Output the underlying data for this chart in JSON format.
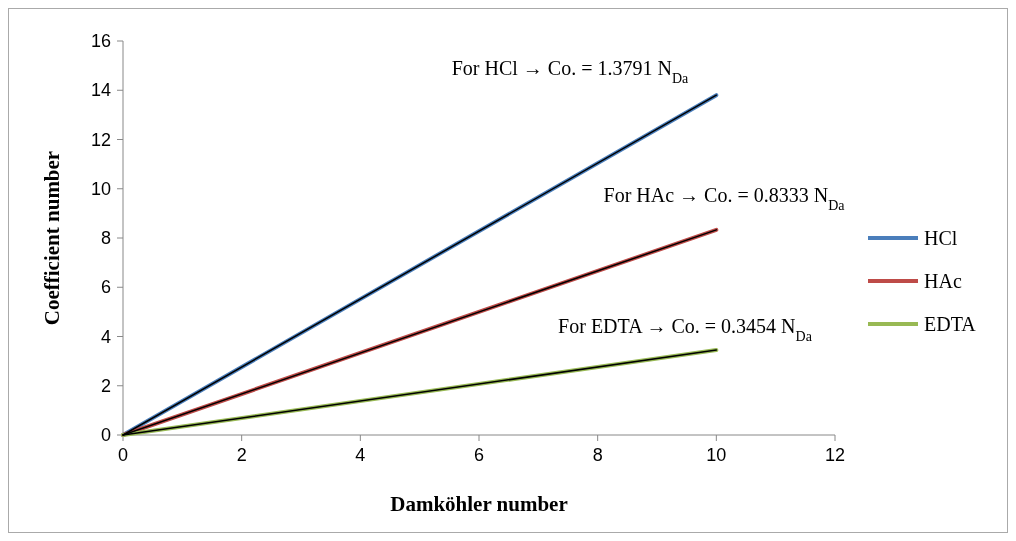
{
  "chart_data": {
    "type": "line",
    "xlabel": "Damköhler number",
    "ylabel": "Coefficient number",
    "x": [
      0,
      10
    ],
    "xlim": [
      0,
      12
    ],
    "xticks": [
      0,
      2,
      4,
      6,
      8,
      10,
      12
    ],
    "ylim": [
      0,
      16
    ],
    "yticks": [
      0,
      2,
      4,
      6,
      8,
      10,
      12,
      14,
      16
    ],
    "grid": false,
    "legend": "right",
    "marker": "none",
    "line_style": "solid",
    "series": [
      {
        "name": "HCl",
        "color": "#4a7ebb",
        "values": [
          0,
          13.8
        ]
      },
      {
        "name": "HAc",
        "color": "#be4b48",
        "values": [
          0,
          8.33
        ]
      },
      {
        "name": "EDTA",
        "color": "#98b954",
        "values": [
          0,
          3.45
        ]
      },
      {
        "type": "line",
        "color": "#000000",
        "values": [
          0,
          13.8
        ]
      },
      {
        "type": "line",
        "color": "#000000",
        "values": [
          0,
          8.33
        ]
      },
      {
        "type": "line",
        "color": "#000000",
        "values": [
          0,
          3.45
        ]
      }
    ],
    "annotations": [
      "For HCl → Co. = 1.3791 N$_{Da}$",
      "For HAc → Co. = 0.8333 N$_{Da}$",
      "For EDTA → Co. = 0.3454 N$_{Da}$"
    ]
  }
}
